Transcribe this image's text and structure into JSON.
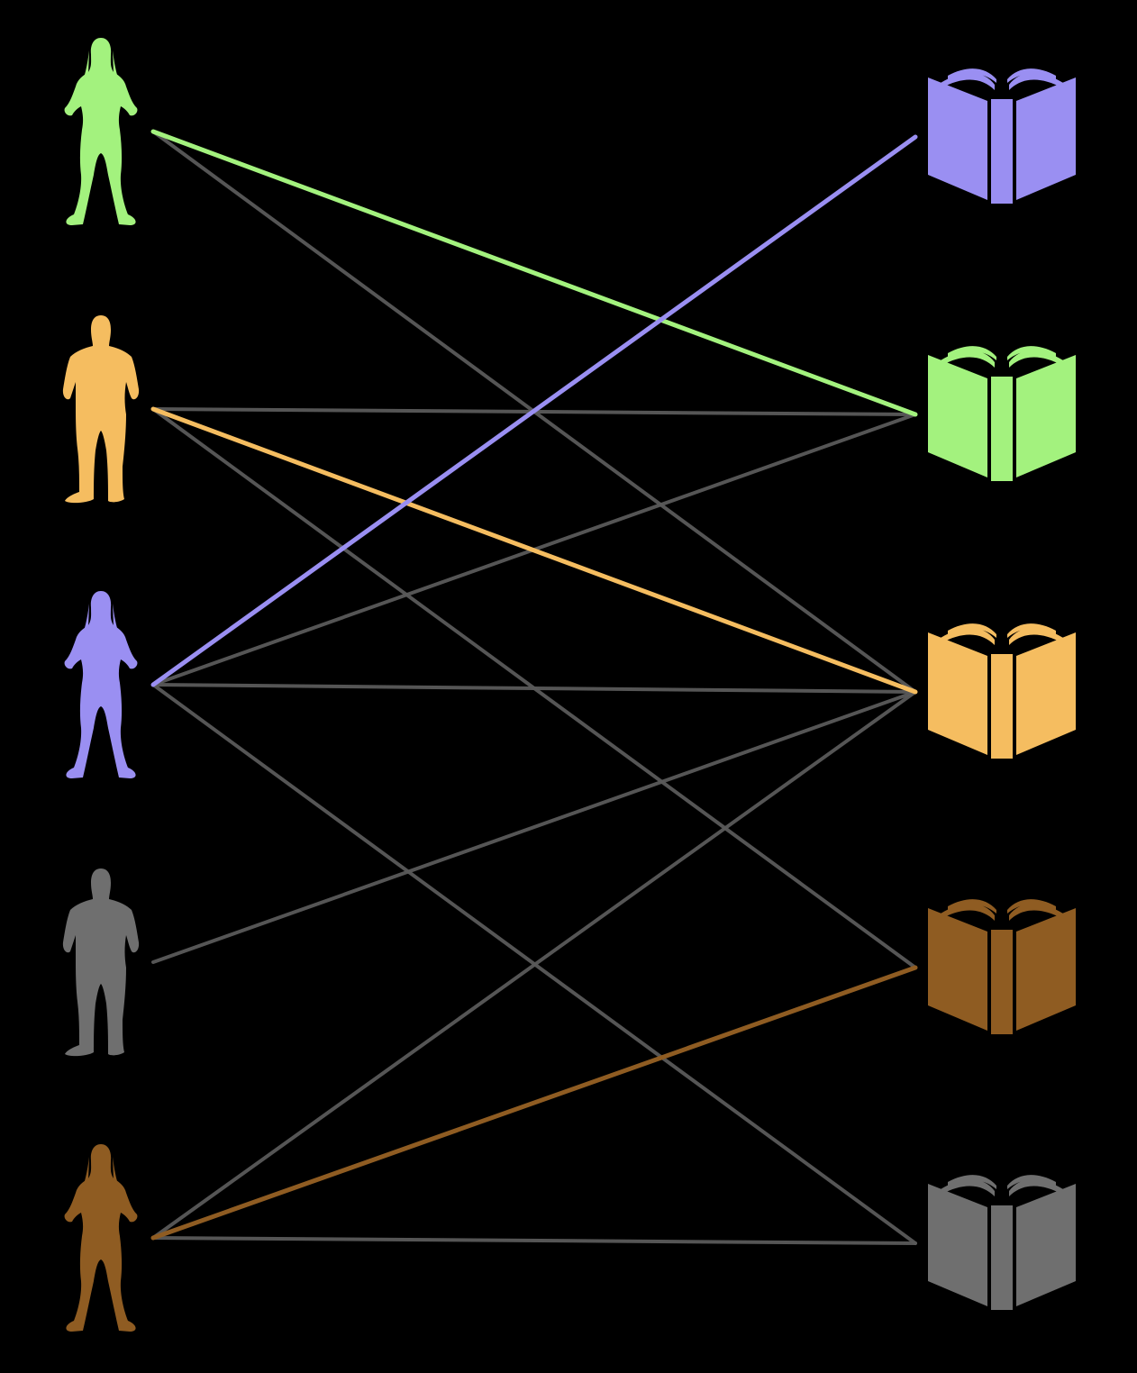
{
  "background_color": "#000000",
  "colors": {
    "green": "#a3f27e",
    "orange": "#f5bd60",
    "purple": "#9a8ff2",
    "gray": "#6f6f6f",
    "brown": "#8f5c22",
    "neutral_link": "#5a5a5a"
  },
  "people": [
    {
      "id": "person-1",
      "figure": "woman",
      "color": "green"
    },
    {
      "id": "person-2",
      "figure": "man",
      "color": "orange"
    },
    {
      "id": "person-3",
      "figure": "woman",
      "color": "purple"
    },
    {
      "id": "person-4",
      "figure": "man",
      "color": "gray"
    },
    {
      "id": "person-5",
      "figure": "woman",
      "color": "brown"
    }
  ],
  "books": [
    {
      "id": "book-1",
      "icon": "open-book-icon",
      "color": "purple"
    },
    {
      "id": "book-2",
      "icon": "open-book-icon",
      "color": "green"
    },
    {
      "id": "book-3",
      "icon": "open-book-icon",
      "color": "orange"
    },
    {
      "id": "book-4",
      "icon": "open-book-icon",
      "color": "brown"
    },
    {
      "id": "book-5",
      "icon": "open-book-icon",
      "color": "gray"
    }
  ],
  "links": [
    {
      "person": 0,
      "book": 2,
      "color": "neutral_link",
      "highlighted": false
    },
    {
      "person": 1,
      "book": 1,
      "color": "neutral_link",
      "highlighted": false
    },
    {
      "person": 1,
      "book": 3,
      "color": "neutral_link",
      "highlighted": false
    },
    {
      "person": 2,
      "book": 1,
      "color": "neutral_link",
      "highlighted": false
    },
    {
      "person": 2,
      "book": 2,
      "color": "neutral_link",
      "highlighted": false
    },
    {
      "person": 2,
      "book": 4,
      "color": "neutral_link",
      "highlighted": false
    },
    {
      "person": 3,
      "book": 2,
      "color": "neutral_link",
      "highlighted": false
    },
    {
      "person": 4,
      "book": 2,
      "color": "neutral_link",
      "highlighted": false
    },
    {
      "person": 4,
      "book": 4,
      "color": "neutral_link",
      "highlighted": false
    },
    {
      "person": 0,
      "book": 1,
      "color": "green",
      "highlighted": true
    },
    {
      "person": 1,
      "book": 2,
      "color": "orange",
      "highlighted": true
    },
    {
      "person": 2,
      "book": 0,
      "color": "purple",
      "highlighted": true
    },
    {
      "person": 4,
      "book": 3,
      "color": "brown",
      "highlighted": true
    }
  ]
}
